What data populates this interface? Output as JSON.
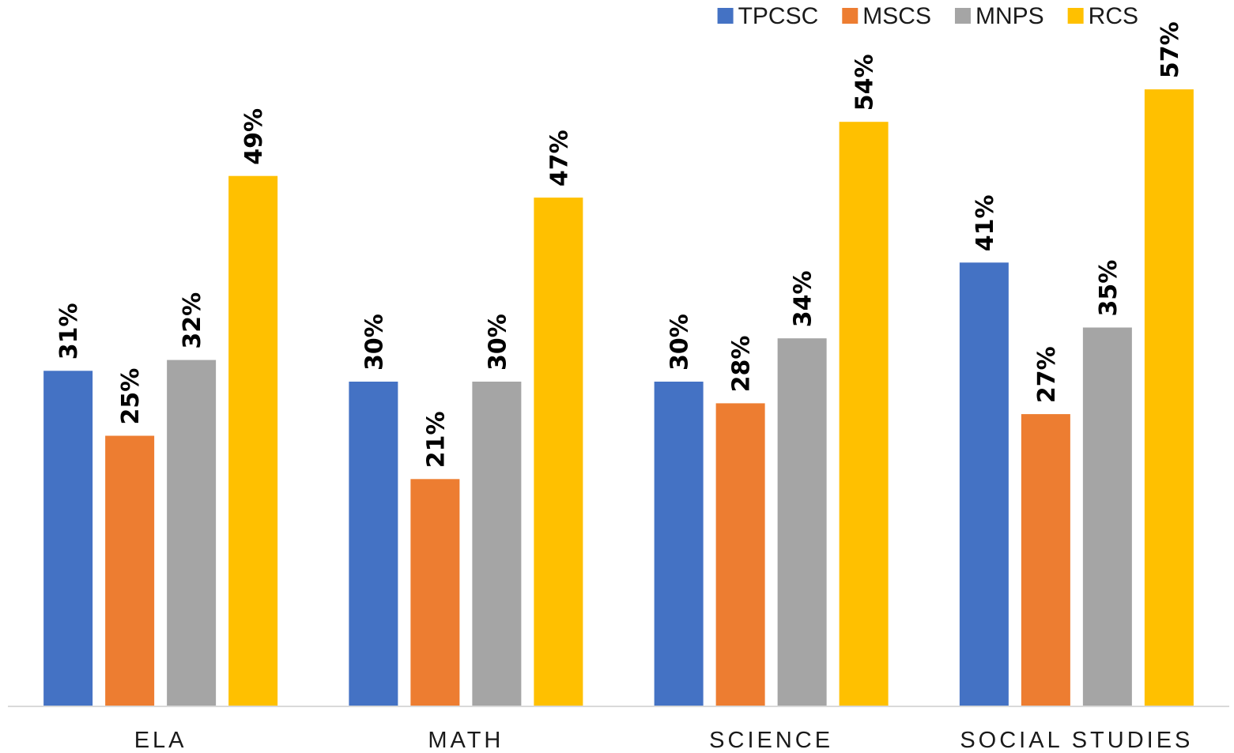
{
  "chart_data": {
    "type": "bar",
    "categories": [
      "ELA",
      "MATH",
      "SCIENCE",
      "SOCIAL STUDIES"
    ],
    "series": [
      {
        "name": "TPCSC",
        "color": "#4472C4",
        "values": [
          31,
          30,
          30,
          41
        ],
        "labels": [
          "31%",
          "30%",
          "30%",
          "41%"
        ]
      },
      {
        "name": "MSCS",
        "color": "#ED7D31",
        "values": [
          25,
          21,
          28,
          27
        ],
        "labels": [
          "25%",
          "21%",
          "28%",
          "27%"
        ]
      },
      {
        "name": "MNPS",
        "color": "#A5A5A5",
        "values": [
          32,
          30,
          34,
          35
        ],
        "labels": [
          "32%",
          "30%",
          "34%",
          "35%"
        ]
      },
      {
        "name": "RCS",
        "color": "#FFC000",
        "values": [
          49,
          47,
          54,
          57
        ],
        "labels": [
          "49%",
          "47%",
          "54%",
          "57%"
        ]
      }
    ],
    "ylim": [
      0,
      65
    ],
    "value_unit": "%",
    "grid": false,
    "legend_position": "top-right",
    "data_label_orientation": "vertical",
    "title": "",
    "xlabel": "",
    "ylabel": ""
  }
}
